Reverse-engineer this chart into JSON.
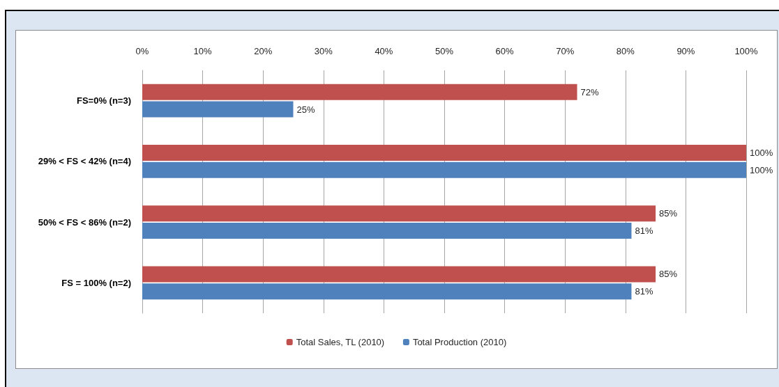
{
  "chart_data": {
    "type": "bar",
    "orientation": "horizontal",
    "categories": [
      "FS=0% (n=3)",
      "29% < FS < 42% (n=4)",
      "50% < FS < 86% (n=2)",
      "FS = 100% (n=2)"
    ],
    "series": [
      {
        "name": "Total Sales, TL (2010)",
        "color": "#c0504d",
        "values": [
          72,
          100,
          85,
          85
        ],
        "value_labels": [
          "72%",
          "100%",
          "85%",
          "85%"
        ]
      },
      {
        "name": "Total Production (2010)",
        "color": "#4f81bd",
        "values": [
          25,
          100,
          81,
          81
        ],
        "value_labels": [
          "25%",
          "100%",
          "81%",
          "81%"
        ]
      }
    ],
    "xlim": [
      0,
      100
    ],
    "xticks": [
      {
        "value": 0,
        "label": "0%"
      },
      {
        "value": 10,
        "label": "10%"
      },
      {
        "value": 20,
        "label": "20%"
      },
      {
        "value": 30,
        "label": "30%"
      },
      {
        "value": 40,
        "label": "40%"
      },
      {
        "value": 50,
        "label": "50%"
      },
      {
        "value": 60,
        "label": "60%"
      },
      {
        "value": 70,
        "label": "70%"
      },
      {
        "value": 80,
        "label": "80%"
      },
      {
        "value": 90,
        "label": "90%"
      },
      {
        "value": 100,
        "label": "100%"
      }
    ],
    "grid": "x",
    "legend": "bottom"
  }
}
